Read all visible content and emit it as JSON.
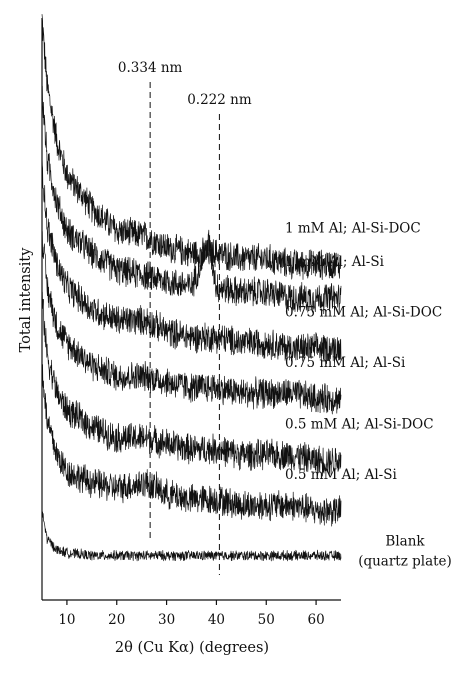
{
  "chart_data": {
    "type": "line",
    "title": "",
    "xlabel": "2θ (Cu Kα) (degrees)",
    "ylabel": "Total intensity",
    "xlim": [
      5,
      65
    ],
    "x_ticks": [
      "10",
      "20",
      "30",
      "40",
      "50",
      "60"
    ],
    "x_tick_values": [
      10,
      20,
      30,
      40,
      50,
      60
    ],
    "y_ticks": [],
    "grid": false,
    "legend": "series labels printed at right end of each trace",
    "annotations": [
      {
        "text": "0.334 nm",
        "x": 26.7,
        "style": "dashed vertical reference line"
      },
      {
        "text": "0.222 nm",
        "x": 40.6,
        "style": "dashed vertical reference line"
      }
    ],
    "series": [
      {
        "name": "1 mM Al; Al-Si-DOC",
        "label_lines": [
          "1 mM Al; Al-Si-DOC"
        ],
        "x": [
          5,
          6,
          8,
          10,
          15,
          20,
          26,
          30,
          35,
          40,
          45,
          50,
          55,
          60,
          65
        ],
        "y": [
          1.0,
          0.88,
          0.78,
          0.72,
          0.66,
          0.62,
          0.61,
          0.59,
          0.58,
          0.58,
          0.57,
          0.57,
          0.56,
          0.56,
          0.56
        ]
      },
      {
        "name": "1 mM Al; Al-Si",
        "label_lines": [
          "1 mM Al; Al-Si"
        ],
        "x": [
          5,
          6,
          8,
          10,
          15,
          20,
          26,
          30,
          35,
          38.5,
          40,
          45,
          50,
          55,
          60,
          65
        ],
        "y": [
          0.87,
          0.75,
          0.67,
          0.62,
          0.58,
          0.55,
          0.54,
          0.53,
          0.52,
          0.6,
          0.52,
          0.51,
          0.51,
          0.5,
          0.5,
          0.5
        ]
      },
      {
        "name": "0.75 mM Al; Al-Si-DOC",
        "label_lines": [
          "0.75 mM Al; Al-Si-DOC"
        ],
        "x": [
          5,
          6,
          8,
          10,
          15,
          20,
          26,
          30,
          35,
          40,
          45,
          50,
          55,
          60,
          65
        ],
        "y": [
          0.74,
          0.63,
          0.56,
          0.52,
          0.48,
          0.46,
          0.46,
          0.44,
          0.43,
          0.43,
          0.42,
          0.42,
          0.41,
          0.41,
          0.41
        ]
      },
      {
        "name": "0.75 mM Al; Al-Si",
        "label_lines": [
          "0.75 mM Al; Al-Si"
        ],
        "x": [
          5,
          6,
          8,
          10,
          15,
          20,
          26,
          30,
          35,
          40,
          45,
          50,
          55,
          60,
          65
        ],
        "y": [
          0.62,
          0.52,
          0.45,
          0.42,
          0.38,
          0.36,
          0.36,
          0.35,
          0.34,
          0.34,
          0.33,
          0.33,
          0.33,
          0.32,
          0.32
        ]
      },
      {
        "name": "0.5 mM Al; Al-Si-DOC",
        "label_lines": [
          "0.5 mM Al; Al-Si-DOC"
        ],
        "x": [
          5,
          6,
          8,
          10,
          15,
          20,
          26,
          30,
          35,
          40,
          45,
          50,
          55,
          60,
          65
        ],
        "y": [
          0.5,
          0.4,
          0.33,
          0.3,
          0.27,
          0.25,
          0.25,
          0.24,
          0.23,
          0.23,
          0.22,
          0.22,
          0.22,
          0.21,
          0.21
        ]
      },
      {
        "name": "0.5 mM Al; Al-Si",
        "label_lines": [
          "0.5 mM Al; Al-Si"
        ],
        "x": [
          5,
          6,
          8,
          10,
          15,
          20,
          26,
          30,
          35,
          40,
          45,
          50,
          55,
          60,
          65
        ],
        "y": [
          0.38,
          0.28,
          0.22,
          0.19,
          0.17,
          0.16,
          0.17,
          0.15,
          0.14,
          0.14,
          0.13,
          0.13,
          0.13,
          0.12,
          0.12
        ]
      },
      {
        "name": "Blank (quartz plate)",
        "label_lines": [
          "Blank",
          "(quartz plate)"
        ],
        "x": [
          5,
          6,
          8,
          10,
          15,
          20,
          26,
          30,
          35,
          40,
          45,
          50,
          55,
          60,
          65
        ],
        "y": [
          0.12,
          0.07,
          0.05,
          0.045,
          0.04,
          0.04,
          0.04,
          0.04,
          0.04,
          0.04,
          0.04,
          0.04,
          0.04,
          0.04,
          0.04
        ]
      }
    ]
  }
}
